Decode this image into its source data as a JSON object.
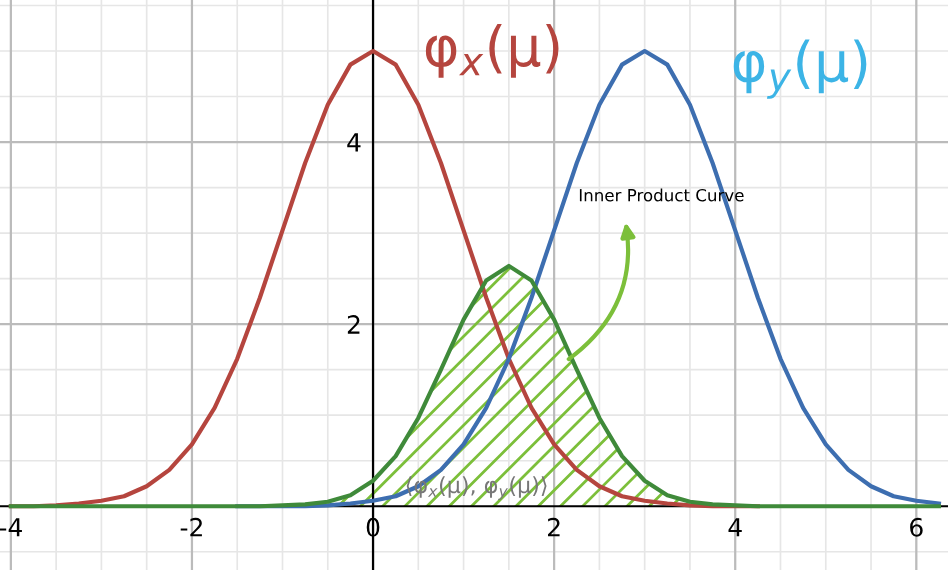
{
  "chart_data": {
    "type": "line",
    "x": [
      -4,
      -3.75,
      -3.5,
      -3.25,
      -3,
      -2.75,
      -2.5,
      -2.25,
      -2,
      -1.75,
      -1.5,
      -1.25,
      -1,
      -0.75,
      -0.5,
      -0.25,
      0,
      0.25,
      0.5,
      0.75,
      1,
      1.25,
      1.5,
      1.75,
      2,
      2.25,
      2.5,
      2.75,
      3,
      3.25,
      3.5,
      3.75,
      4,
      4.25,
      4.5,
      4.75,
      5,
      5.25,
      5.5,
      5.75,
      6,
      6.25
    ],
    "series": [
      {
        "name": "φ$_{x}$(μ)",
        "color": "#b5453e",
        "values": [
          0,
          0,
          0.01,
          0.03,
          0.06,
          0.11,
          0.22,
          0.4,
          0.68,
          1.08,
          1.62,
          2.29,
          3.03,
          3.77,
          4.41,
          4.85,
          5,
          4.85,
          4.41,
          3.77,
          3.03,
          2.29,
          1.62,
          1.08,
          0.68,
          0.4,
          0.22,
          0.11,
          0.06,
          0.03,
          0.01,
          0,
          0,
          0,
          null,
          null,
          null,
          null,
          null,
          null,
          null,
          null
        ]
      },
      {
        "name": "φ$_{y}$(μ)",
        "color": "#3d6eb0",
        "values": [
          null,
          null,
          null,
          null,
          null,
          null,
          null,
          null,
          null,
          null,
          0,
          0,
          0,
          0,
          0.01,
          0.03,
          0.06,
          0.11,
          0.22,
          0.4,
          0.68,
          1.08,
          1.62,
          2.29,
          3.03,
          3.77,
          4.41,
          4.85,
          5,
          4.85,
          4.41,
          3.77,
          3.03,
          2.29,
          1.62,
          1.08,
          0.68,
          0.4,
          0.22,
          0.11,
          0.06,
          0.03
        ]
      },
      {
        "name": "⟨φ$_{x}$(μ), φ$_{y}$(μ)⟩",
        "color": "#3f8a3a",
        "type": "area",
        "values": [
          0,
          0,
          0,
          0,
          0,
          0,
          0,
          0,
          0,
          0,
          0,
          0,
          0.01,
          0.02,
          0.05,
          0.12,
          0.28,
          0.55,
          0.97,
          1.5,
          2.05,
          2.48,
          2.64,
          2.48,
          2.05,
          1.5,
          0.97,
          0.55,
          0.28,
          0.12,
          0.05,
          0.02,
          0.01,
          0,
          0,
          0,
          0,
          0,
          0,
          0,
          0,
          0
        ]
      }
    ],
    "annotations": [
      "Inner Product Curve"
    ],
    "xlim": [
      -4.12,
      6.35
    ],
    "ylim": [
      -0.7,
      5.56
    ],
    "xticks": [
      -4,
      -2,
      0,
      2,
      4,
      6
    ],
    "yticks": [
      2,
      4
    ],
    "grid": true,
    "legend": false
  }
}
